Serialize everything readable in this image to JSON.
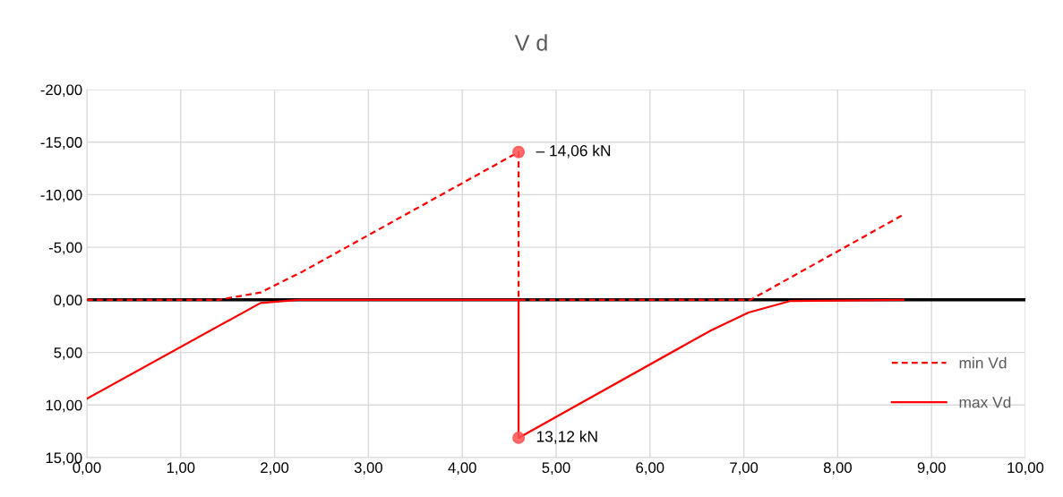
{
  "chart_data": {
    "type": "line",
    "title": "V d",
    "series": [
      {
        "name": "min Vd",
        "color": "#ff0000",
        "line_style": "dashed",
        "x": [
          0,
          1.4,
          1.85,
          2.3,
          4.6,
          4.6,
          7.07,
          8.7
        ],
        "values": [
          0,
          0,
          -0.7,
          -2.7,
          -14.06,
          0,
          0,
          -8.1
        ]
      },
      {
        "name": "max Vd",
        "color": "#ff0000",
        "line_style": "solid",
        "x": [
          0,
          1.85,
          2.25,
          4.6,
          4.6,
          6.65,
          7.05,
          7.5,
          8.7
        ],
        "values": [
          9.4,
          0.3,
          0,
          0,
          13.12,
          2.9,
          1.2,
          0.1,
          0
        ]
      }
    ],
    "xlim": [
      0,
      10
    ],
    "xticks": [
      {
        "value": 0,
        "label": "0,00"
      },
      {
        "value": 1,
        "label": "1,00"
      },
      {
        "value": 2,
        "label": "2,00"
      },
      {
        "value": 3,
        "label": "3,00"
      },
      {
        "value": 4,
        "label": "4,00"
      },
      {
        "value": 5,
        "label": "5,00"
      },
      {
        "value": 6,
        "label": "6,00"
      },
      {
        "value": 7,
        "label": "7,00"
      },
      {
        "value": 8,
        "label": "8,00"
      },
      {
        "value": 9,
        "label": "9,00"
      },
      {
        "value": 10,
        "label": "10,00"
      }
    ],
    "ylim": [
      15,
      -20
    ],
    "yticks": [
      {
        "value": -20,
        "label": "-20,00"
      },
      {
        "value": -15,
        "label": "-15,00"
      },
      {
        "value": -10,
        "label": "-10,00"
      },
      {
        "value": -5,
        "label": "-5,00"
      },
      {
        "value": 0,
        "label": "0,00"
      },
      {
        "value": 5,
        "label": "5,00"
      },
      {
        "value": 10,
        "label": "10,00"
      },
      {
        "value": 15,
        "label": "15,00"
      }
    ],
    "ref_lines": [
      {
        "axis": "y",
        "value": 0,
        "color": "#000000"
      }
    ],
    "annotations": [
      {
        "text": "– 14,06 kN",
        "x": 4.6,
        "y": -14.06
      },
      {
        "text": "13,12 kN",
        "x": 4.6,
        "y": 13.12
      }
    ],
    "grid": true,
    "legend": "right"
  }
}
